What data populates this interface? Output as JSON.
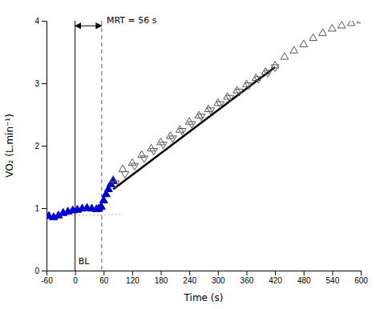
{
  "chart_data": {
    "type": "scatter",
    "xlabel": "Time (s)",
    "ylabel": "VO₂ (L.min⁻¹)",
    "xlim": [
      -60,
      600
    ],
    "ylim": [
      0,
      4
    ],
    "xticks": [
      -60,
      0,
      60,
      120,
      180,
      240,
      300,
      360,
      420,
      480,
      540,
      600
    ],
    "yticks": [
      0,
      1,
      2,
      3,
      4
    ],
    "series": [
      {
        "type": "line",
        "line_style": "dotted",
        "color": "#aaaaaa",
        "x": [
          -60,
          100
        ],
        "values": [
          0.87,
          0.9
        ]
      },
      {
        "type": "line",
        "line_style": "solid",
        "color": "#000000",
        "x": [
          80,
          420
        ],
        "values": [
          1.3,
          3.26
        ]
      },
      {
        "type": "scatter",
        "marker": "triangle-up",
        "color": "#0000cc",
        "x": [
          -55,
          -45,
          -35,
          -25,
          -15,
          -5,
          5,
          15,
          25,
          35,
          45,
          50,
          55,
          60,
          65,
          70,
          75,
          80
        ],
        "values": [
          0.87,
          0.85,
          0.88,
          0.92,
          0.94,
          0.96,
          0.97,
          0.99,
          1.0,
          0.99,
          0.98,
          0.99,
          1.02,
          1.12,
          1.22,
          1.3,
          1.38,
          1.43
        ]
      },
      {
        "type": "scatter",
        "marker": "triangle-up-open",
        "color": "#555555",
        "x": [
          80,
          100,
          120,
          140,
          160,
          180,
          200,
          220,
          240,
          260,
          280,
          300,
          320,
          340,
          360,
          380,
          400,
          420,
          440,
          460,
          480,
          500,
          520,
          540,
          560,
          580,
          600
        ],
        "values": [
          1.45,
          1.62,
          1.72,
          1.85,
          1.95,
          2.05,
          2.15,
          2.25,
          2.38,
          2.48,
          2.58,
          2.68,
          2.78,
          2.88,
          2.98,
          3.08,
          3.18,
          3.28,
          3.42,
          3.52,
          3.62,
          3.72,
          3.8,
          3.87,
          3.92,
          3.96,
          4.0
        ]
      },
      {
        "type": "scatter",
        "marker": "triangle-down-open",
        "color": "#555555",
        "x": [
          85,
          105,
          125,
          145,
          165,
          185,
          205,
          225,
          245,
          265,
          285,
          305,
          325,
          345,
          365,
          385,
          405,
          420
        ],
        "values": [
          1.4,
          1.55,
          1.68,
          1.8,
          1.92,
          2.02,
          2.12,
          2.24,
          2.35,
          2.47,
          2.57,
          2.67,
          2.77,
          2.87,
          2.97,
          3.07,
          3.17,
          3.26
        ]
      }
    ],
    "annotations": [
      {
        "type": "vline",
        "x": 0,
        "color": "#000000",
        "line_style": "solid",
        "text": "BL"
      },
      {
        "type": "vline",
        "x": 56,
        "color": "#555555",
        "line_style": "dashed"
      },
      {
        "type": "arrow",
        "x": [
          0,
          56
        ],
        "y": 3.92,
        "text": "MRT = 56 s"
      }
    ]
  }
}
